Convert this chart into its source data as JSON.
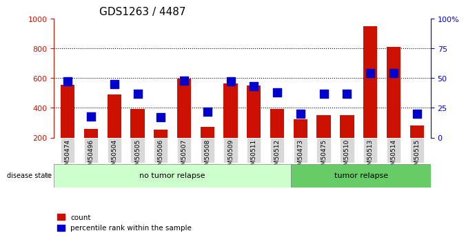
{
  "title": "GDS1263 / 4487",
  "samples": [
    "GSM50474",
    "GSM50496",
    "GSM50504",
    "GSM50505",
    "GSM50506",
    "GSM50507",
    "GSM50508",
    "GSM50509",
    "GSM50511",
    "GSM50512",
    "GSM50473",
    "GSM50475",
    "GSM50510",
    "GSM50513",
    "GSM50514",
    "GSM50515"
  ],
  "counts": [
    555,
    258,
    492,
    395,
    252,
    598,
    270,
    565,
    550,
    395,
    322,
    352,
    352,
    948,
    808,
    282
  ],
  "percentile_ranks": [
    47,
    18,
    45,
    37,
    17,
    48,
    22,
    47,
    43,
    38,
    20,
    37,
    37,
    54,
    54,
    20
  ],
  "no_tumor_count": 10,
  "tumor_count": 6,
  "group_no_tumor_label": "no tumor relapse",
  "group_tumor_label": "tumor relapse",
  "disease_state_label": "disease state",
  "legend_count": "count",
  "legend_percentile": "percentile rank within the sample",
  "bar_color": "#cc1100",
  "percentile_color": "#0000cc",
  "ylim_left": [
    200,
    1000
  ],
  "ylim_right": [
    0,
    100
  ],
  "yticks_left": [
    200,
    400,
    600,
    800,
    1000
  ],
  "yticks_right": [
    0,
    25,
    50,
    75,
    100
  ],
  "grid_lines": [
    400,
    600,
    800
  ],
  "bg_color_plot": "#ffffff",
  "bg_color_xtick": "#d8d8d8",
  "bg_color_no_tumor": "#ccffcc",
  "bg_color_tumor": "#66cc66",
  "bar_width": 0.6
}
